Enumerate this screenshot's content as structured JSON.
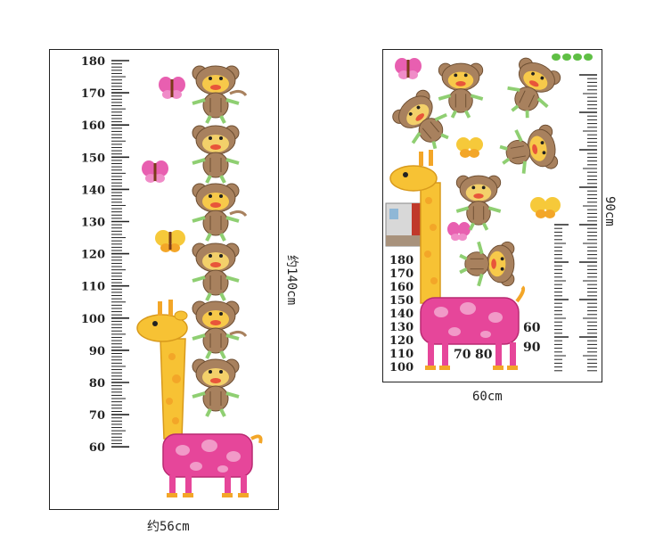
{
  "left_panel": {
    "ruler_labels": [
      "180",
      "170",
      "160",
      "150",
      "140",
      "130",
      "120",
      "110",
      "100",
      "90",
      "80",
      "70",
      "60"
    ],
    "width_label": "约56cm",
    "height_label": "约140cm"
  },
  "right_panel": {
    "stacked_labels": [
      "180",
      "170",
      "160",
      "150",
      "140",
      "130",
      "120",
      "110",
      "100"
    ],
    "loose_labels": {
      "l70": "70",
      "l80": "80",
      "l60": "60",
      "l90": "90"
    },
    "width_label": "60cm",
    "height_label": "90cm"
  },
  "colors": {
    "giraffe_yellow": "#f7c234",
    "giraffe_pink": "#e6469a",
    "monkey_brown": "#a8815e",
    "monkey_face": "#f7c94a",
    "butterfly_pink": "#e85fb0",
    "butterfly_yellow": "#f6c93a",
    "leaf_green": "#5fbf45"
  }
}
